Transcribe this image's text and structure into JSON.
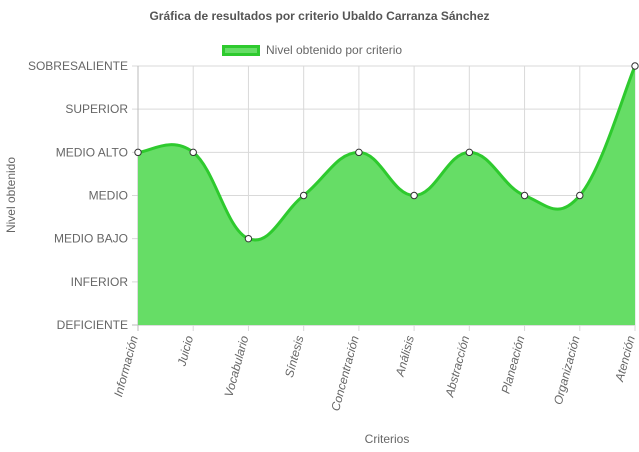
{
  "chart_data": {
    "type": "area",
    "title": "Gráfica de resultados por criterio Ubaldo Carranza Sánchez",
    "xlabel": "Criterios",
    "ylabel": "Nivel obtenido",
    "levels": [
      "DEFICIENTE",
      "INFERIOR",
      "MEDIO BAJO",
      "MEDIO",
      "MEDIO ALTO",
      "SUPERIOR",
      "SOBRESALIENTE"
    ],
    "categories": [
      "Información",
      "Juicio",
      "Vocabulario",
      "Síntesis",
      "Concentración",
      "Análisis",
      "Abstracción",
      "Planeación",
      "Organización",
      "Atención"
    ],
    "series": [
      {
        "name": "Nivel obtenido por criterio",
        "values": [
          "MEDIO ALTO",
          "MEDIO ALTO",
          "MEDIO BAJO",
          "MEDIO",
          "MEDIO ALTO",
          "MEDIO",
          "MEDIO ALTO",
          "MEDIO",
          "MEDIO",
          "SOBRESALIENTE"
        ],
        "fill_color": "#66dd66",
        "line_color": "#2eca2e"
      }
    ],
    "legend_position": "top",
    "grid": true
  }
}
